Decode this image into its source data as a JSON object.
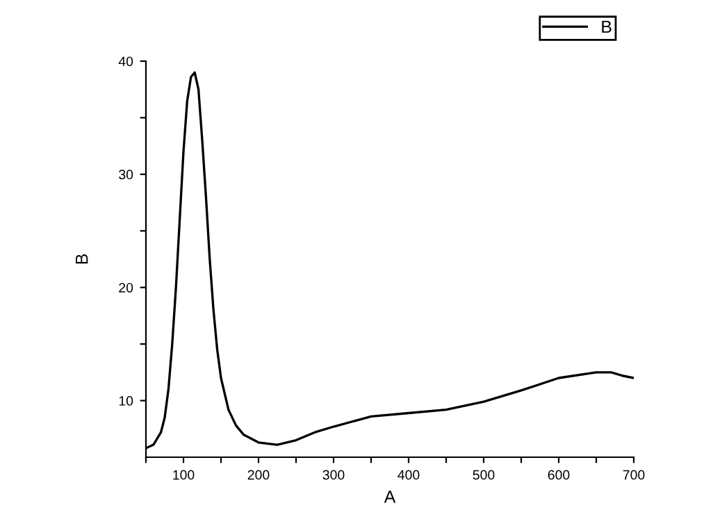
{
  "chart_data": {
    "type": "line",
    "xlabel": "A",
    "ylabel": "B",
    "xlim": [
      50,
      700
    ],
    "ylim": [
      5,
      40
    ],
    "xticks": [
      {
        "value": 50,
        "label": null
      },
      100,
      {
        "value": 150,
        "label": null
      },
      200,
      {
        "value": 250,
        "label": null
      },
      300,
      {
        "value": 350,
        "label": null
      },
      400,
      {
        "value": 450,
        "label": null
      },
      500,
      {
        "value": 550,
        "label": null
      },
      600,
      {
        "value": 650,
        "label": null
      },
      700
    ],
    "yticks": [
      10,
      {
        "value": 15,
        "label": null
      },
      20,
      {
        "value": 25,
        "label": null
      },
      30,
      {
        "value": 35,
        "label": null
      },
      40
    ],
    "grid": false,
    "legend": "top right",
    "marker": "none",
    "line_style": "solid",
    "series": [
      {
        "name": "B",
        "color": "#000000",
        "x": [
          50,
          60,
          70,
          75,
          80,
          85,
          90,
          95,
          100,
          105,
          110,
          115,
          120,
          125,
          130,
          135,
          140,
          145,
          150,
          160,
          170,
          180,
          200,
          225,
          250,
          275,
          300,
          350,
          400,
          450,
          500,
          550,
          600,
          650,
          670,
          685,
          700
        ],
        "values": [
          5.8,
          6.1,
          7.2,
          8.5,
          11,
          15,
          20,
          26,
          32,
          36.5,
          38.6,
          39,
          37.5,
          33,
          28,
          22.5,
          18,
          14.5,
          12,
          9.2,
          7.8,
          7,
          6.3,
          6.1,
          6.5,
          7.2,
          7.7,
          8.6,
          8.9,
          9.2,
          9.9,
          10.9,
          12,
          12.5,
          12.5,
          12.2,
          12
        ]
      }
    ]
  }
}
